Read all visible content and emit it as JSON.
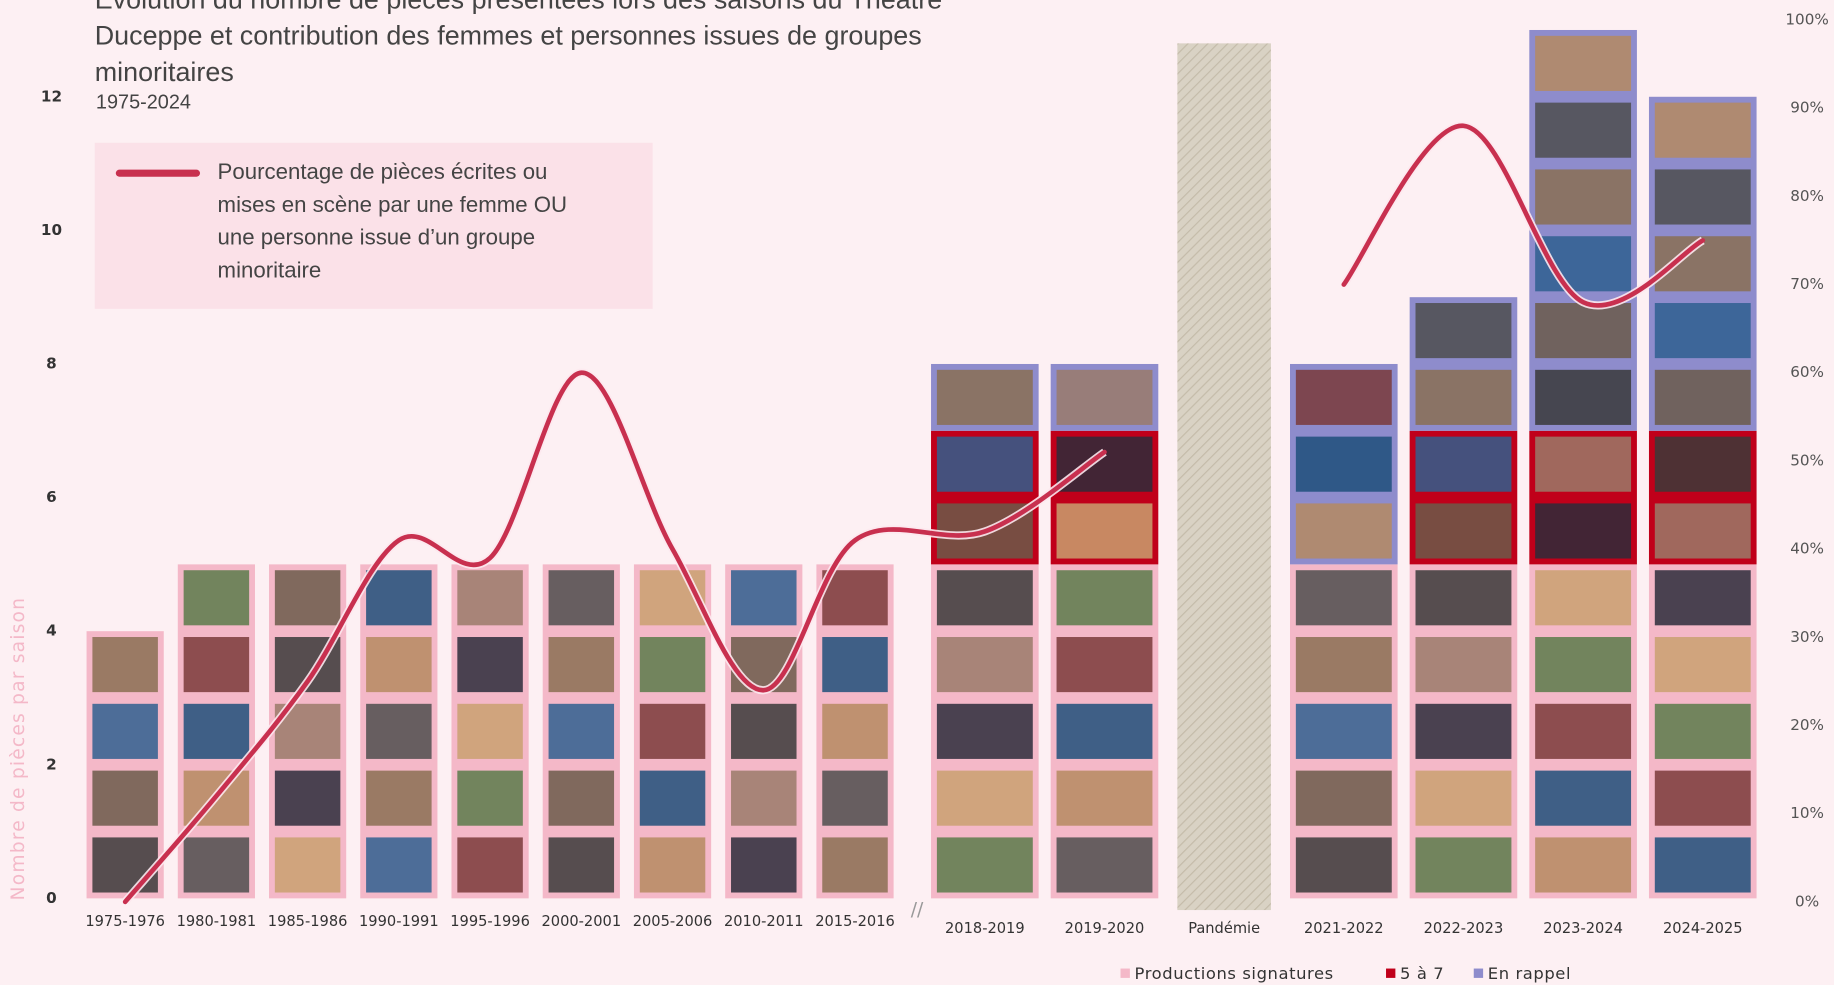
{
  "chart_data": {
    "type": "bar",
    "title": "Évolution du nombre de pièces présentées lors des saisons du Théâtre Duceppe et contribution des femmes et personnes issues de groupes minoritaires",
    "subtitle": "1975-2024",
    "y_label": "Nombre de pièces par saison",
    "categories": [
      "1975-1976",
      "1980-1981",
      "1985-1986",
      "1990-1991",
      "1995-1996",
      "2000-2001",
      "2005-2006",
      "2010-2011",
      "2015-2016",
      "2018-2019",
      "2019-2020",
      "Pandémie",
      "2021-2022",
      "2022-2023",
      "2023-2024",
      "2024-2025"
    ],
    "stacked": true,
    "series": [
      {
        "name": "Productions signatures",
        "color": "#f4b8c8",
        "values": [
          4,
          5,
          5,
          5,
          5,
          5,
          5,
          5,
          5,
          5,
          5,
          null,
          5,
          5,
          5,
          5
        ]
      },
      {
        "name": "5 à 7",
        "color": "#c0001a",
        "values": [
          0,
          0,
          0,
          0,
          0,
          0,
          0,
          0,
          0,
          2,
          2,
          null,
          0,
          2,
          2,
          2
        ]
      },
      {
        "name": "En rappel",
        "color": "#8e8ccc",
        "values": [
          0,
          0,
          0,
          0,
          0,
          0,
          0,
          0,
          0,
          1,
          1,
          null,
          3,
          2,
          6,
          5
        ]
      },
      {
        "name": "Pourcentage de pièces écrites ou mises en scène par une femme OU une personne issue d’un groupe minoritaire",
        "color": "#c8304f",
        "type": "line",
        "axis": "y2",
        "values": [
          0,
          12,
          25,
          41,
          39,
          60,
          40,
          24,
          41,
          42,
          51,
          null,
          70,
          88,
          68,
          75
        ]
      }
    ],
    "ylim": [
      0,
      13.15
    ],
    "yticks": [
      0,
      2,
      4,
      6,
      8,
      10,
      12
    ],
    "y2lim": [
      0,
      100
    ],
    "y2ticks": [
      {
        "value": 0,
        "label": "0%"
      },
      {
        "value": 10,
        "label": "10%"
      },
      {
        "value": 20,
        "label": "20%"
      },
      {
        "value": 30,
        "label": "30%"
      },
      {
        "value": 40,
        "label": "40%"
      },
      {
        "value": 50,
        "label": "50%"
      },
      {
        "value": 60,
        "label": "60%"
      },
      {
        "value": 70,
        "label": "70%"
      },
      {
        "value": 80,
        "label": "80%"
      },
      {
        "value": 90,
        "label": "90%"
      },
      {
        "value": 100,
        "label": "100%"
      }
    ]
  }
}
